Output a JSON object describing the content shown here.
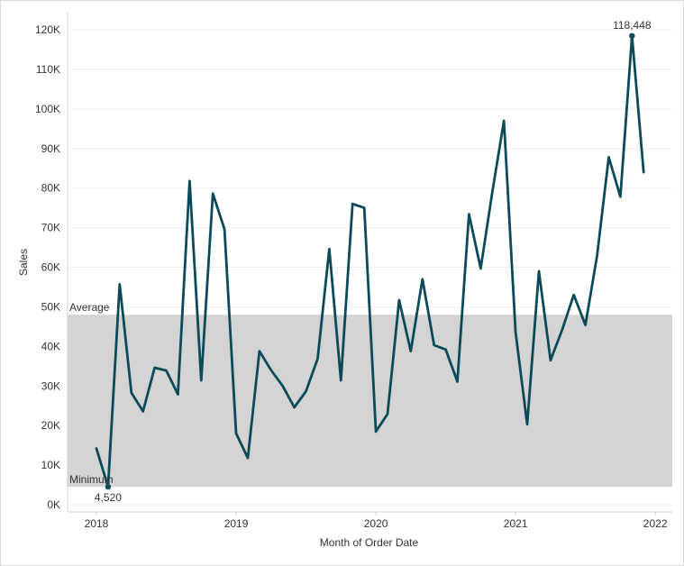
{
  "chart_data": {
    "type": "line",
    "xlabel": "Month of Order Date",
    "ylabel": "Sales",
    "ylim": [
      0,
      123000
    ],
    "yticks": [
      0,
      10000,
      20000,
      30000,
      40000,
      50000,
      60000,
      70000,
      80000,
      90000,
      100000,
      110000,
      120000
    ],
    "ytick_labels": [
      "0K",
      "10K",
      "20K",
      "30K",
      "40K",
      "50K",
      "60K",
      "70K",
      "80K",
      "90K",
      "100K",
      "110K",
      "120K"
    ],
    "xtick_labels": [
      "2018",
      "2019",
      "2020",
      "2021",
      "2022"
    ],
    "grid": true,
    "line_color": "#0d4a57",
    "band_color": "#d4d4d4",
    "band": {
      "from_label": "Minimum",
      "to_label": "Average",
      "from": 4520,
      "to": 48000
    },
    "annotations": [
      {
        "label": "118,448",
        "index": 46
      },
      {
        "label": "4,520",
        "index": 1
      }
    ],
    "series": [
      {
        "values": [
          14200,
          4520,
          55700,
          28300,
          23600,
          34600,
          33900,
          27900,
          81800,
          31400,
          78600,
          69600,
          18000,
          11800,
          38800,
          34000,
          30000,
          24600,
          28700,
          36900,
          64600,
          31400,
          76000,
          75000,
          18500,
          22900,
          51700,
          38800,
          57000,
          40300,
          39200,
          31100,
          73400,
          59700,
          79000,
          97000,
          43600,
          20300,
          59000,
          36500,
          44200,
          53000,
          45400,
          63000,
          87800,
          77800,
          118448,
          84000
        ]
      }
    ]
  }
}
